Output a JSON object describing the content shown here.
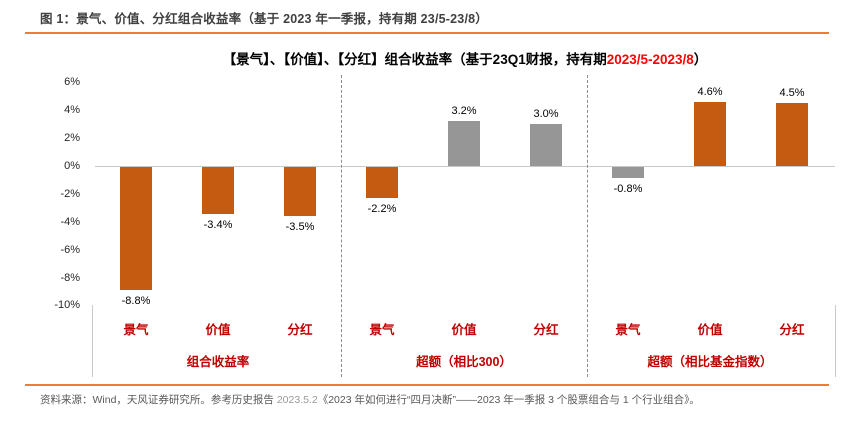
{
  "figure": {
    "title": "图 1：景气、价值、分红组合收益率（基于 2023 年一季报，持有期 23/5-23/8）",
    "source": {
      "prefix": "资料来源：Wind，天风证券研究所。参考历史报告 ",
      "report_date": "2023.5.2",
      "suffix": "《2023 年如何进行“四月决断”——2023 年一季报 3 个股票组合与 1 个行业组合》。"
    }
  },
  "chart_data": {
    "type": "bar",
    "title": {
      "text_before": "【景气】、【价值】、【分红】组合收益率（基于23Q1财报，持有期",
      "highlight": "2023/5-2023/8",
      "text_after": "）"
    },
    "ylabel": "",
    "xlabel": "",
    "ylim": [
      -10,
      6
    ],
    "grid": false,
    "legend": "none",
    "ytick_labels": [
      "6%",
      "4%",
      "2%",
      "0%",
      "-2%",
      "-4%",
      "-6%",
      "-8%",
      "-10%"
    ],
    "ytick_values": [
      6,
      4,
      2,
      0,
      -2,
      -4,
      -6,
      -8,
      -10
    ],
    "palette": {
      "orange": "#C55A11",
      "gray": "#969696"
    },
    "groups": [
      {
        "label": "组合收益率",
        "bars": [
          {
            "category": "景气",
            "value": -8.8,
            "label": "-8.8%",
            "color": "orange"
          },
          {
            "category": "价值",
            "value": -3.4,
            "label": "-3.4%",
            "color": "orange"
          },
          {
            "category": "分红",
            "value": -3.5,
            "label": "-3.5%",
            "color": "orange"
          }
        ]
      },
      {
        "label": "超额（相比300）",
        "bars": [
          {
            "category": "景气",
            "value": -2.2,
            "label": "-2.2%",
            "color": "orange"
          },
          {
            "category": "价值",
            "value": 3.2,
            "label": "3.2%",
            "color": "gray"
          },
          {
            "category": "分红",
            "value": 3.0,
            "label": "3.0%",
            "color": "gray"
          }
        ]
      },
      {
        "label": "超额（相比基金指数）",
        "bars": [
          {
            "category": "景气",
            "value": -0.8,
            "label": "-0.8%",
            "color": "gray"
          },
          {
            "category": "价值",
            "value": 4.6,
            "label": "4.6%",
            "color": "orange"
          },
          {
            "category": "分红",
            "value": 4.5,
            "label": "4.5%",
            "color": "orange"
          }
        ]
      }
    ]
  },
  "colors": {
    "accent_rule": "#ED7D31",
    "bar_orange": "#C55A11",
    "bar_gray": "#969696",
    "label_red": "#C00000",
    "title_highlight_red": "#FF0000",
    "figure_title_gray": "#404040",
    "source_gray": "#595959"
  }
}
